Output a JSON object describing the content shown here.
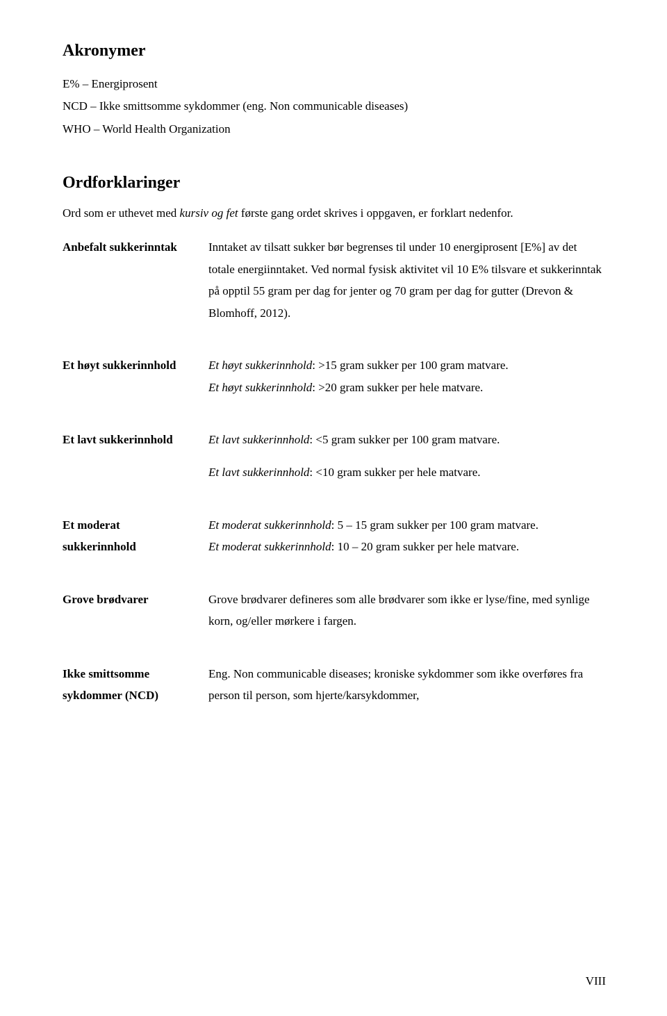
{
  "typography": {
    "font_family": "Times New Roman",
    "title_fontsize": 24,
    "body_fontsize": 17,
    "line_height": 1.85,
    "text_color": "#000000",
    "background_color": "#ffffff"
  },
  "acronyms": {
    "title": "Akronymer",
    "items": [
      "E% – Energiprosent",
      "NCD – Ikke smittsomme sykdommer (eng. Non communicable diseases)",
      "WHO – World Health Organization"
    ]
  },
  "ordforklaringer": {
    "title": "Ordforklaringer",
    "intro_prefix": "Ord som er uthevet med ",
    "intro_italic": "kursiv og fet",
    "intro_suffix": " første gang ordet skrives i oppgaven, er forklart nedenfor."
  },
  "definitions": [
    {
      "term": "Anbefalt sukkerinntak",
      "definition": "Inntaket av tilsatt sukker bør begrenses til under 10 energiprosent [E%] av det totale energiinntaket. Ved normal fysisk aktivitet vil 10 E% tilsvare et sukkerinntak på opptil 55 gram per dag for jenter og 70 gram per dag for gutter (Drevon & Blomhoff, 2012)."
    },
    {
      "term": "Et høyt sukkerinnhold",
      "def_line1_italic": "Et høyt sukkerinnhold",
      "def_line1_rest": ": >15 gram sukker per 100 gram matvare.",
      "def_line2_italic": "Et høyt sukkerinnhold",
      "def_line2_rest": ": >20 gram sukker per hele matvare."
    },
    {
      "term": "Et lavt sukkerinnhold",
      "def_line1_italic": "Et lavt sukkerinnhold",
      "def_line1_rest": ": <5 gram sukker per 100 gram matvare."
    }
  ],
  "standalone": {
    "italic": "Et lavt sukkerinnhold",
    "rest": ": <10 gram sukker per hele matvare."
  },
  "definitions2": [
    {
      "term_line1": "Et moderat",
      "term_line2": "sukkerinnhold",
      "def_line1_italic": "Et moderat sukkerinnhold",
      "def_line1_rest": ": 5 – 15 gram sukker per 100 gram matvare.",
      "def_line2_italic": "Et moderat sukkerinnhold",
      "def_line2_rest": ": 10 – 20 gram sukker per hele matvare."
    },
    {
      "term": "Grove brødvarer",
      "definition": "Grove brødvarer defineres som alle brødvarer som ikke er lyse/fine, med synlige korn, og/eller mørkere i fargen."
    },
    {
      "term_line1": "Ikke smittsomme",
      "term_line2": "sykdommer (NCD)",
      "definition": "Eng. Non communicable diseases; kroniske sykdommer som ikke overføres fra person til person, som hjerte/karsykdommer,"
    }
  ],
  "page_number": "VIII"
}
